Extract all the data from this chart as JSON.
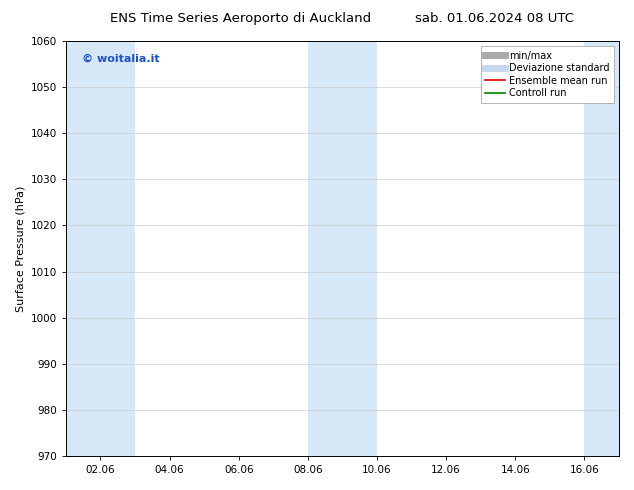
{
  "title_left": "ENS Time Series Aeroporto di Auckland",
  "title_right": "sab. 01.06.2024 08 UTC",
  "ylabel": "Surface Pressure (hPa)",
  "ylim": [
    970,
    1060
  ],
  "yticks": [
    970,
    980,
    990,
    1000,
    1010,
    1020,
    1030,
    1040,
    1050,
    1060
  ],
  "xlim": [
    0,
    16
  ],
  "xtick_labels": [
    "02.06",
    "04.06",
    "06.06",
    "08.06",
    "10.06",
    "12.06",
    "14.06",
    "16.06"
  ],
  "xtick_positions": [
    1,
    3,
    5,
    7,
    9,
    11,
    13,
    15
  ],
  "watermark": "© woitalia.it",
  "watermark_color": "#1a52cc",
  "bg_color": "#ffffff",
  "plot_bg_color": "#ffffff",
  "shaded_bands": [
    {
      "x_start": 0,
      "x_end": 2,
      "color": "#d6e8f8"
    },
    {
      "x_start": 7,
      "x_end": 9,
      "color": "#d6e8f8"
    },
    {
      "x_start": 15,
      "x_end": 16,
      "color": "#d6e8f8"
    }
  ],
  "legend_entries": [
    {
      "label": "min/max",
      "color": "#aaaaaa",
      "lw": 5,
      "style": "solid"
    },
    {
      "label": "Deviazione standard",
      "color": "#c5d9ec",
      "lw": 5,
      "style": "solid"
    },
    {
      "label": "Ensemble mean run",
      "color": "#dd0000",
      "lw": 1.2,
      "style": "solid"
    },
    {
      "label": "Controll run",
      "color": "#008000",
      "lw": 1.2,
      "style": "solid"
    }
  ],
  "title_fontsize": 9.5,
  "ylabel_fontsize": 8,
  "tick_fontsize": 7.5,
  "watermark_fontsize": 8,
  "legend_fontsize": 7
}
